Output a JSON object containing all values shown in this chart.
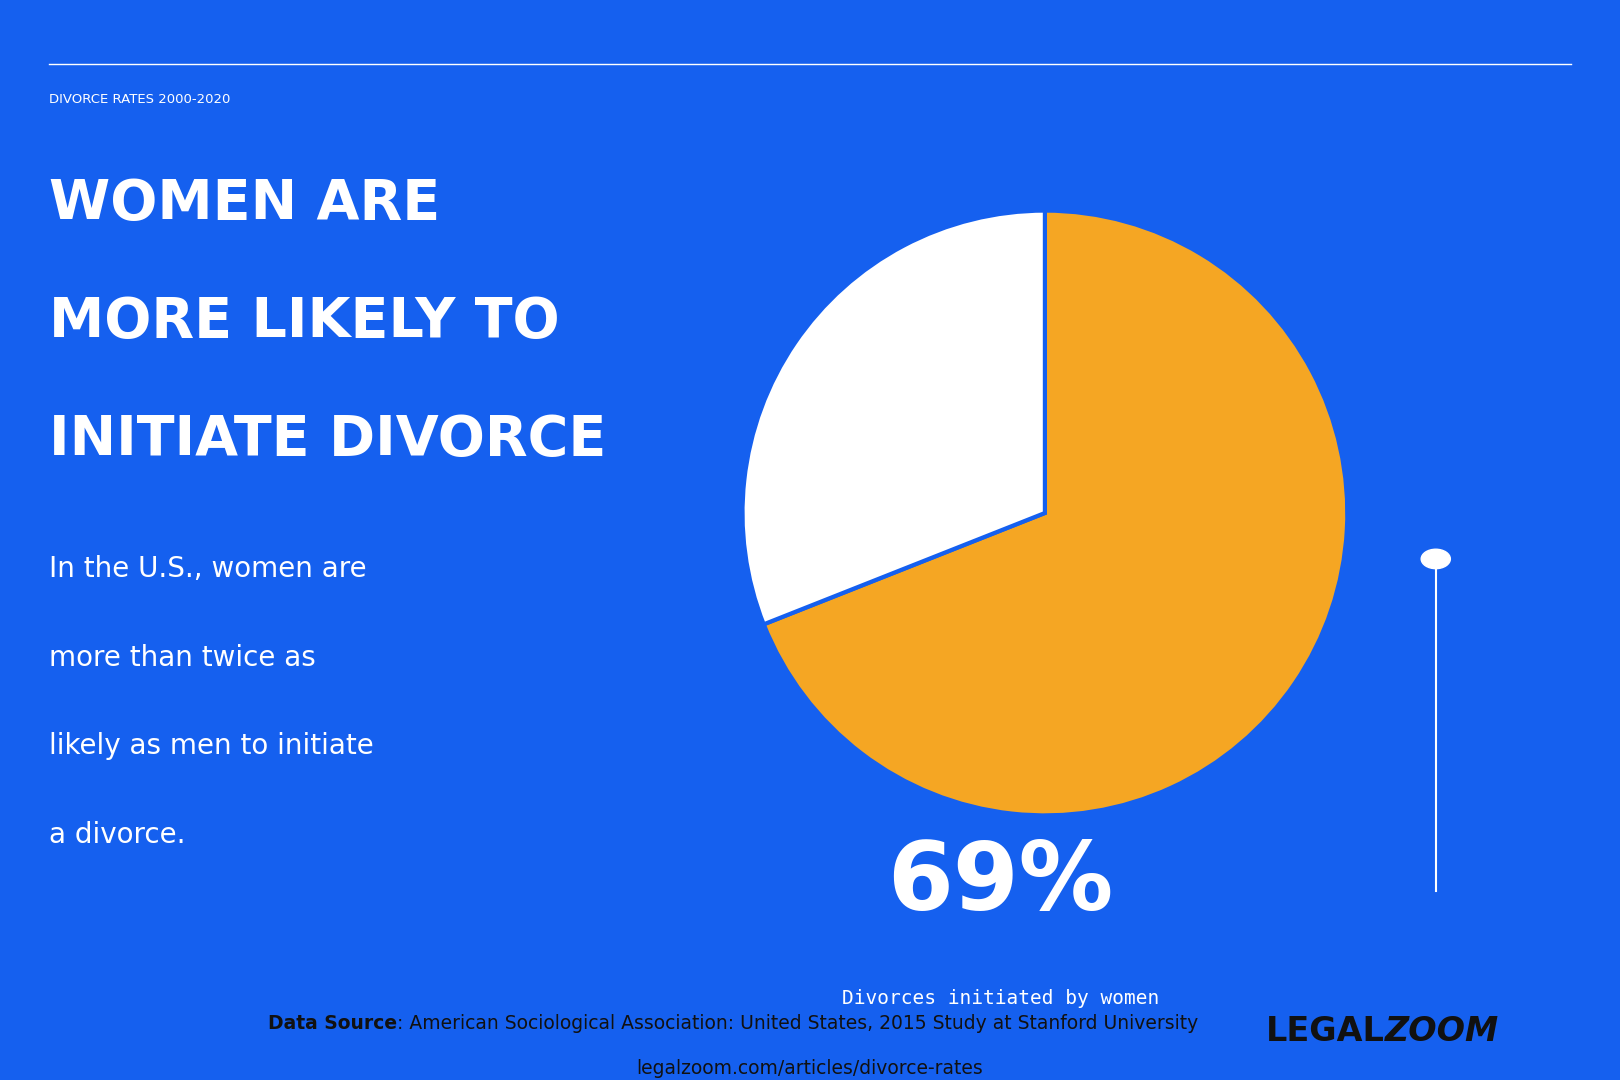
{
  "background_color": "#1560EF",
  "footer_bg": "#FFFFFF",
  "pie_values": [
    69,
    31
  ],
  "pie_colors": [
    "#F5A623",
    "#FFFFFF"
  ],
  "header_line_text": "DIVORCE RATES 2000-2020",
  "title_line1": "WOMEN ARE",
  "title_line2": "MORE LIKELY TO",
  "title_line3": "INITIATE DIVORCE",
  "body_line1": "In the U.S., women are",
  "body_line2": "more than twice as",
  "body_line3": "likely as men to initiate",
  "body_line4": "a divorce.",
  "pct_label": "69%",
  "pct_sublabel": "Divorces initiated by women",
  "footer_text1_bold": "Data Source",
  "footer_text1_rest": ": American Sociological Association: United States, 2015 Study at Stanford University",
  "footer_text2": "legalzoom.com/articles/divorce-rates",
  "logo_text1": "LEGAL",
  "logo_text2": "ZOOM",
  "text_color_white": "#FFFFFF",
  "text_color_dark": "#111111",
  "orange_color": "#F5A623"
}
